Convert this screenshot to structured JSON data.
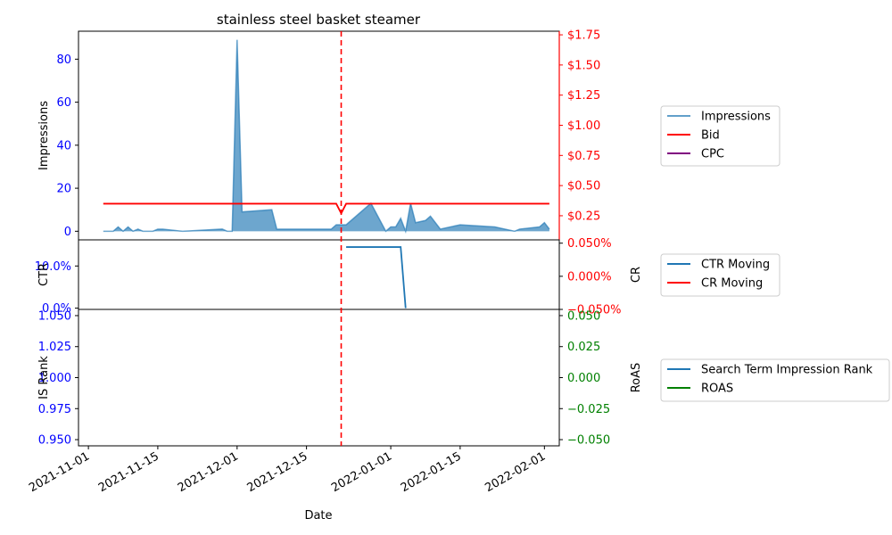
{
  "chart_data": {
    "type": "multi-panel time series",
    "title": "stainless steel basket steamer",
    "xlabel": "Date",
    "x_tick_labels": [
      "2021-11-01",
      "2021-11-15",
      "2021-12-01",
      "2021-12-15",
      "2022-01-01",
      "2022-01-15",
      "2022-02-01"
    ],
    "x_range": [
      "2021-10-30",
      "2022-02-04"
    ],
    "marker_date": "2021-12-22",
    "colors": {
      "impressions": "#1f77b4",
      "bid": "#ff0000",
      "cpc": "#800080",
      "ctr": "#1f77b4",
      "cr": "#ff0000",
      "rank": "#1f77b4",
      "roas": "#008000",
      "left_ticks": "#0000ff",
      "marker": "#ff0000"
    },
    "panels": [
      {
        "id": "top",
        "left_axis": {
          "label": "Impressions",
          "ylim": [
            -4,
            93
          ],
          "ticks": [
            0,
            20,
            40,
            60,
            80
          ],
          "tick_labels": [
            "0",
            "20",
            "40",
            "60",
            "80"
          ]
        },
        "right_axis": {
          "label": "",
          "ylim": [
            0.05,
            1.78
          ],
          "ticks": [
            0.25,
            0.5,
            0.75,
            1.0,
            1.25,
            1.5,
            1.75
          ],
          "tick_labels": [
            "$0.25",
            "$0.50",
            "$0.75",
            "$1.00",
            "$1.25",
            "$1.50",
            "$1.75"
          ]
        },
        "legend": [
          "Impressions",
          "Bid",
          "CPC"
        ],
        "legend_position": "right",
        "series": [
          {
            "name": "Impressions",
            "type": "area",
            "axis": "left",
            "points": [
              [
                "2021-11-04",
                0
              ],
              [
                "2021-11-05",
                0
              ],
              [
                "2021-11-06",
                0
              ],
              [
                "2021-11-07",
                2
              ],
              [
                "2021-11-08",
                0
              ],
              [
                "2021-11-09",
                2
              ],
              [
                "2021-11-10",
                0
              ],
              [
                "2021-11-11",
                1
              ],
              [
                "2021-11-12",
                0
              ],
              [
                "2021-11-13",
                0
              ],
              [
                "2021-11-14",
                0
              ],
              [
                "2021-11-15",
                1
              ],
              [
                "2021-11-16",
                1
              ],
              [
                "2021-11-20",
                0
              ],
              [
                "2021-11-28",
                1
              ],
              [
                "2021-11-29",
                0
              ],
              [
                "2021-11-30",
                0
              ],
              [
                "2021-12-01",
                89
              ],
              [
                "2021-12-02",
                9
              ],
              [
                "2021-12-08",
                10
              ],
              [
                "2021-12-09",
                1
              ],
              [
                "2021-12-20",
                1
              ],
              [
                "2021-12-21",
                3
              ],
              [
                "2021-12-23",
                3
              ],
              [
                "2021-12-28",
                13
              ],
              [
                "2021-12-31",
                0
              ],
              [
                "2022-01-01",
                2
              ],
              [
                "2022-01-02",
                2
              ],
              [
                "2022-01-03",
                6
              ],
              [
                "2022-01-04",
                0
              ],
              [
                "2022-01-05",
                13
              ],
              [
                "2022-01-06",
                4
              ],
              [
                "2022-01-08",
                5
              ],
              [
                "2022-01-09",
                7
              ],
              [
                "2022-01-11",
                1
              ],
              [
                "2022-01-15",
                3
              ],
              [
                "2022-01-22",
                2
              ],
              [
                "2022-01-26",
                0
              ],
              [
                "2022-01-27",
                1
              ],
              [
                "2022-01-31",
                2
              ],
              [
                "2022-02-01",
                4
              ],
              [
                "2022-02-02",
                1
              ]
            ]
          },
          {
            "name": "Bid",
            "type": "line",
            "axis": "right",
            "points": [
              [
                "2021-11-04",
                0.35
              ],
              [
                "2021-12-21",
                0.35
              ],
              [
                "2021-12-22",
                0.27
              ],
              [
                "2021-12-23",
                0.35
              ],
              [
                "2022-02-02",
                0.35
              ]
            ]
          },
          {
            "name": "CPC",
            "type": "line",
            "axis": "right",
            "points": []
          }
        ]
      },
      {
        "id": "middle",
        "left_axis": {
          "label": "CTR",
          "ylim": [
            -0.3,
            16.2
          ],
          "ticks": [
            0,
            10
          ],
          "tick_labels": [
            "0.0%",
            "10.0%"
          ]
        },
        "right_axis": {
          "label": "CR",
          "ylim": [
            -0.05,
            0.055
          ],
          "ticks": [
            -0.05,
            0.0,
            0.05
          ],
          "tick_labels": [
            "−0.050%",
            "0.000%",
            "0.050%"
          ]
        },
        "legend": [
          "CTR Moving",
          "CR Moving"
        ],
        "legend_position": "right",
        "series": [
          {
            "name": "CTR Moving",
            "type": "line",
            "axis": "left",
            "points": [
              [
                "2021-12-23",
                14.5
              ],
              [
                "2022-01-03",
                14.5
              ],
              [
                "2022-01-04",
                0
              ]
            ]
          },
          {
            "name": "CR Moving",
            "type": "line",
            "axis": "right",
            "points": []
          }
        ]
      },
      {
        "id": "bottom",
        "left_axis": {
          "label": "IS Rank",
          "ylim": [
            0.945,
            1.055
          ],
          "ticks": [
            0.95,
            0.975,
            1.0,
            1.025,
            1.05
          ],
          "tick_labels": [
            "0.950",
            "0.975",
            "1.000",
            "1.025",
            "1.050"
          ]
        },
        "right_axis": {
          "label": "RoAS",
          "ylim": [
            -0.055,
            0.055
          ],
          "ticks": [
            -0.05,
            -0.025,
            0.0,
            0.025,
            0.05
          ],
          "tick_labels": [
            "−0.050",
            "−0.025",
            "0.000",
            "0.025",
            "0.050"
          ]
        },
        "legend": [
          "Search Term Impression Rank",
          "ROAS"
        ],
        "legend_position": "right",
        "series": [
          {
            "name": "Search Term Impression Rank",
            "type": "line",
            "axis": "left",
            "points": []
          },
          {
            "name": "ROAS",
            "type": "line",
            "axis": "right",
            "points": []
          }
        ]
      }
    ]
  }
}
